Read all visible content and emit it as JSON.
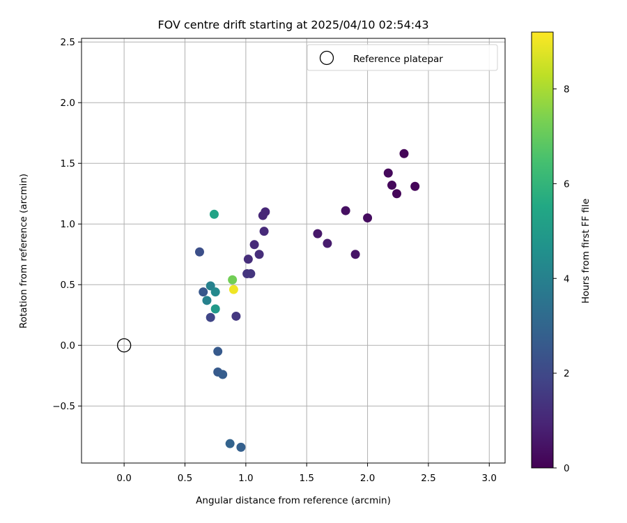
{
  "chart_data": {
    "type": "scatter",
    "title": "FOV centre drift starting at 2025/04/10 02:54:43",
    "xlabel": "Angular distance from reference (arcmin)",
    "ylabel": "Rotation from reference (arcmin)",
    "xlim": [
      -0.35,
      3.13
    ],
    "ylim": [
      -0.97,
      2.53
    ],
    "xticks": [
      0.0,
      0.5,
      1.0,
      1.5,
      2.0,
      2.5,
      3.0
    ],
    "xtick_labels": [
      "0.0",
      "0.5",
      "1.0",
      "1.5",
      "2.0",
      "2.5",
      "3.0"
    ],
    "yticks": [
      -0.5,
      0.0,
      0.5,
      1.0,
      1.5,
      2.0,
      2.5
    ],
    "ytick_labels": [
      "−0.5",
      "0.0",
      "0.5",
      "1.0",
      "1.5",
      "2.0",
      "2.5"
    ],
    "grid": true,
    "legend": {
      "position": "upper right",
      "entries": [
        "Reference platepar"
      ]
    },
    "reference_point": {
      "x": 0.0,
      "y": 0.0,
      "label": "Reference platepar"
    },
    "colorbar": {
      "label": "Hours from first FF file",
      "colormap": "viridis",
      "range": [
        0,
        9.2
      ],
      "ticks": [
        0,
        2,
        4,
        6,
        8
      ],
      "tick_labels": [
        "0",
        "2",
        "4",
        "6",
        "8"
      ]
    },
    "points": [
      {
        "x": 2.3,
        "y": 1.58,
        "hours": 0.1
      },
      {
        "x": 2.39,
        "y": 1.31,
        "hours": 0.1
      },
      {
        "x": 2.24,
        "y": 1.25,
        "hours": 0.15
      },
      {
        "x": 2.2,
        "y": 1.32,
        "hours": 0.2
      },
      {
        "x": 2.17,
        "y": 1.42,
        "hours": 0.2
      },
      {
        "x": 2.0,
        "y": 1.05,
        "hours": 0.3
      },
      {
        "x": 1.82,
        "y": 1.11,
        "hours": 0.4
      },
      {
        "x": 1.9,
        "y": 0.75,
        "hours": 0.5
      },
      {
        "x": 1.59,
        "y": 0.92,
        "hours": 0.6
      },
      {
        "x": 1.67,
        "y": 0.84,
        "hours": 0.7
      },
      {
        "x": 1.16,
        "y": 1.1,
        "hours": 1.0
      },
      {
        "x": 1.14,
        "y": 1.07,
        "hours": 1.0
      },
      {
        "x": 1.15,
        "y": 0.94,
        "hours": 1.1
      },
      {
        "x": 1.07,
        "y": 0.83,
        "hours": 1.1
      },
      {
        "x": 1.11,
        "y": 0.75,
        "hours": 1.2
      },
      {
        "x": 1.02,
        "y": 0.71,
        "hours": 1.2
      },
      {
        "x": 1.01,
        "y": 0.59,
        "hours": 1.4
      },
      {
        "x": 1.04,
        "y": 0.59,
        "hours": 1.4
      },
      {
        "x": 0.92,
        "y": 0.24,
        "hours": 1.5
      },
      {
        "x": 0.71,
        "y": 0.23,
        "hours": 1.9
      },
      {
        "x": 0.62,
        "y": 0.77,
        "hours": 2.2
      },
      {
        "x": 0.65,
        "y": 0.44,
        "hours": 2.5
      },
      {
        "x": 0.77,
        "y": -0.05,
        "hours": 2.6
      },
      {
        "x": 0.77,
        "y": -0.22,
        "hours": 2.6
      },
      {
        "x": 0.81,
        "y": -0.24,
        "hours": 2.7
      },
      {
        "x": 0.87,
        "y": -0.81,
        "hours": 2.9
      },
      {
        "x": 0.96,
        "y": -0.84,
        "hours": 2.8
      },
      {
        "x": 0.68,
        "y": 0.37,
        "hours": 4.0
      },
      {
        "x": 0.71,
        "y": 0.49,
        "hours": 4.0
      },
      {
        "x": 0.75,
        "y": 0.44,
        "hours": 4.3
      },
      {
        "x": 0.75,
        "y": 0.3,
        "hours": 4.9
      },
      {
        "x": 0.74,
        "y": 1.08,
        "hours": 5.3
      },
      {
        "x": 0.89,
        "y": 0.54,
        "hours": 7.2
      },
      {
        "x": 0.9,
        "y": 0.46,
        "hours": 9.0
      }
    ]
  }
}
